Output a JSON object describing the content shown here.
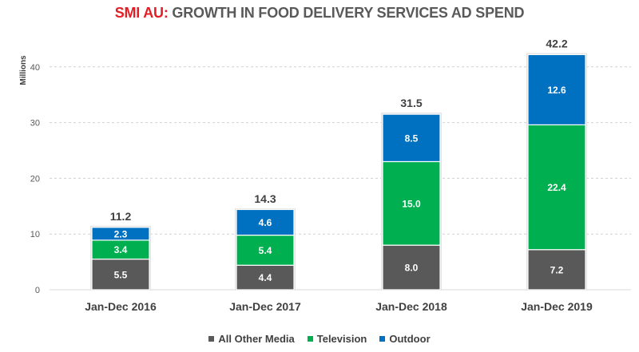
{
  "title": {
    "accent": "SMI AU:",
    "rest": " GROWTH IN FOOD DELIVERY SERVICES AD SPEND"
  },
  "chart_data": {
    "type": "bar",
    "stacked": true,
    "title": "SMI AU: GROWTH IN FOOD DELIVERY SERVICES AD SPEND",
    "xlabel": "",
    "ylabel": "Millions",
    "ylim": [
      0,
      45
    ],
    "yticks": [
      0,
      10,
      20,
      30,
      40
    ],
    "grid": true,
    "legend_position": "bottom",
    "categories": [
      "Jan-Dec 2016",
      "Jan-Dec 2017",
      "Jan-Dec 2018",
      "Jan-Dec 2019"
    ],
    "series": [
      {
        "name": "All Other Media",
        "color": "#595959",
        "values": [
          5.5,
          4.4,
          8.0,
          7.2
        ],
        "labels": [
          "5.5",
          "4.4",
          "8.0",
          "7.2"
        ]
      },
      {
        "name": "Television",
        "color": "#00b050",
        "values": [
          3.4,
          5.4,
          15.0,
          22.4
        ],
        "labels": [
          "3.4",
          "5.4",
          "15.0",
          "22.4"
        ]
      },
      {
        "name": "Outdoor",
        "color": "#0070c0",
        "values": [
          2.3,
          4.6,
          8.5,
          12.6
        ],
        "labels": [
          "2.3",
          "4.6",
          "8.5",
          "12.6"
        ]
      }
    ],
    "totals": [
      11.2,
      14.3,
      31.5,
      42.2
    ],
    "total_labels": [
      "11.2",
      "14.3",
      "31.5",
      "42.2"
    ]
  }
}
